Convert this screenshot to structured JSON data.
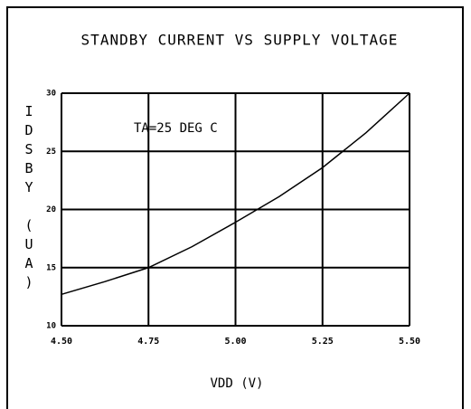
{
  "chart_data": {
    "type": "line",
    "title": "STANDBY CURRENT VS SUPPLY VOLTAGE",
    "x_label": "VDD  (V)",
    "y_label": "IDSBY (UA)",
    "annotation": "TA=25 DEG C",
    "x": [
      4.5,
      4.625,
      4.75,
      4.875,
      5.0,
      5.125,
      5.25,
      5.375,
      5.5
    ],
    "series": [
      {
        "name": "IDSBY",
        "color": "#000000",
        "values": [
          12.7,
          13.8,
          15.0,
          16.8,
          18.9,
          21.1,
          23.6,
          26.6,
          30.0
        ]
      }
    ],
    "xlim": [
      4.5,
      5.5
    ],
    "xticks": [
      {
        "value": 4.5,
        "label": "4.50"
      },
      {
        "value": 4.75,
        "label": "4.75"
      },
      {
        "value": 5.0,
        "label": "5.00"
      },
      {
        "value": 5.25,
        "label": "5.25"
      },
      {
        "value": 5.5,
        "label": "5.50"
      }
    ],
    "ylim": [
      10,
      30
    ],
    "yticks": [
      10,
      15,
      20,
      25,
      30
    ],
    "grid": true
  }
}
